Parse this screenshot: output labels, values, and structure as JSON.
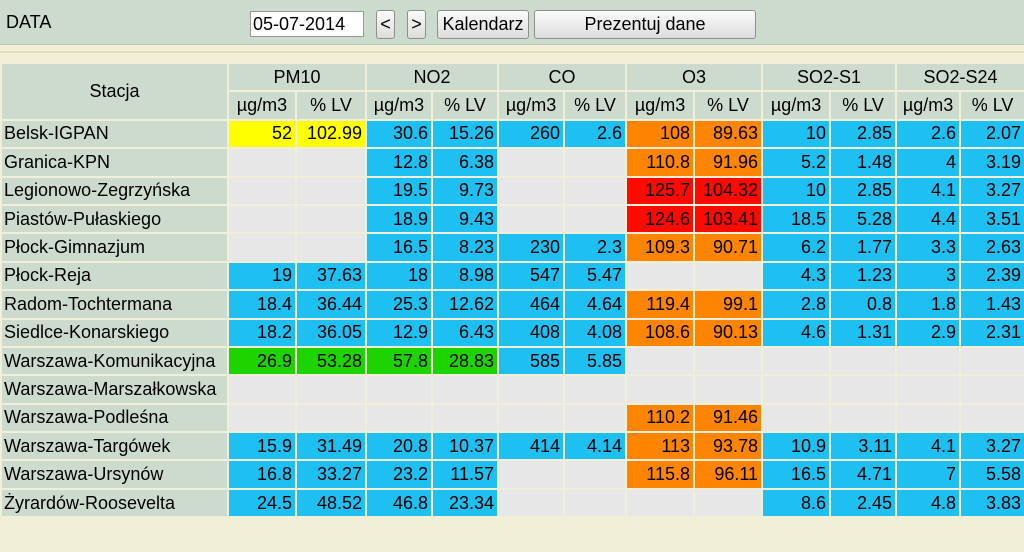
{
  "header": {
    "data_label": "DATA",
    "date_value": "05-07-2014",
    "prev_label": "<",
    "next_label": ">",
    "calendar_label": "Kalendarz",
    "present_label": "Prezentuj dane"
  },
  "colors": {
    "blue": "#1ec0f2",
    "yellow": "#ffff00",
    "orange": "#ff8400",
    "red": "#ff0a00",
    "green": "#1ed400",
    "empty": "#e7e7e7",
    "header": "#cddbcf"
  },
  "table": {
    "station_header": "Stacja",
    "pollutants": [
      "PM10",
      "NO2",
      "CO",
      "O3",
      "SO2-S1",
      "SO2-S24"
    ],
    "subheaders": [
      "µg/m3",
      "% LV"
    ],
    "rows": [
      {
        "station": "Belsk-IGPAN",
        "cells": [
          {
            "v": "52",
            "c": "yellow"
          },
          {
            "v": "102.99",
            "c": "yellow"
          },
          {
            "v": "30.6",
            "c": "blue"
          },
          {
            "v": "15.26",
            "c": "blue"
          },
          {
            "v": "260",
            "c": "blue"
          },
          {
            "v": "2.6",
            "c": "blue"
          },
          {
            "v": "108",
            "c": "orange"
          },
          {
            "v": "89.63",
            "c": "orange"
          },
          {
            "v": "10",
            "c": "blue"
          },
          {
            "v": "2.85",
            "c": "blue"
          },
          {
            "v": "2.6",
            "c": "blue"
          },
          {
            "v": "2.07",
            "c": "blue"
          }
        ]
      },
      {
        "station": "Granica-KPN",
        "cells": [
          {
            "v": "",
            "c": "empty"
          },
          {
            "v": "",
            "c": "empty"
          },
          {
            "v": "12.8",
            "c": "blue"
          },
          {
            "v": "6.38",
            "c": "blue"
          },
          {
            "v": "",
            "c": "empty"
          },
          {
            "v": "",
            "c": "empty"
          },
          {
            "v": "110.8",
            "c": "orange"
          },
          {
            "v": "91.96",
            "c": "orange"
          },
          {
            "v": "5.2",
            "c": "blue"
          },
          {
            "v": "1.48",
            "c": "blue"
          },
          {
            "v": "4",
            "c": "blue"
          },
          {
            "v": "3.19",
            "c": "blue"
          }
        ]
      },
      {
        "station": "Legionowo-Zegrzyńska",
        "cells": [
          {
            "v": "",
            "c": "empty"
          },
          {
            "v": "",
            "c": "empty"
          },
          {
            "v": "19.5",
            "c": "blue"
          },
          {
            "v": "9.73",
            "c": "blue"
          },
          {
            "v": "",
            "c": "empty"
          },
          {
            "v": "",
            "c": "empty"
          },
          {
            "v": "125.7",
            "c": "red"
          },
          {
            "v": "104.32",
            "c": "red"
          },
          {
            "v": "10",
            "c": "blue"
          },
          {
            "v": "2.85",
            "c": "blue"
          },
          {
            "v": "4.1",
            "c": "blue"
          },
          {
            "v": "3.27",
            "c": "blue"
          }
        ]
      },
      {
        "station": "Piastów-Pułaskiego",
        "cells": [
          {
            "v": "",
            "c": "empty"
          },
          {
            "v": "",
            "c": "empty"
          },
          {
            "v": "18.9",
            "c": "blue"
          },
          {
            "v": "9.43",
            "c": "blue"
          },
          {
            "v": "",
            "c": "empty"
          },
          {
            "v": "",
            "c": "empty"
          },
          {
            "v": "124.6",
            "c": "red"
          },
          {
            "v": "103.41",
            "c": "red"
          },
          {
            "v": "18.5",
            "c": "blue"
          },
          {
            "v": "5.28",
            "c": "blue"
          },
          {
            "v": "4.4",
            "c": "blue"
          },
          {
            "v": "3.51",
            "c": "blue"
          }
        ]
      },
      {
        "station": "Płock-Gimnazjum",
        "cells": [
          {
            "v": "",
            "c": "empty"
          },
          {
            "v": "",
            "c": "empty"
          },
          {
            "v": "16.5",
            "c": "blue"
          },
          {
            "v": "8.23",
            "c": "blue"
          },
          {
            "v": "230",
            "c": "blue"
          },
          {
            "v": "2.3",
            "c": "blue"
          },
          {
            "v": "109.3",
            "c": "orange"
          },
          {
            "v": "90.71",
            "c": "orange"
          },
          {
            "v": "6.2",
            "c": "blue"
          },
          {
            "v": "1.77",
            "c": "blue"
          },
          {
            "v": "3.3",
            "c": "blue"
          },
          {
            "v": "2.63",
            "c": "blue"
          }
        ]
      },
      {
        "station": "Płock-Reja",
        "cells": [
          {
            "v": "19",
            "c": "blue"
          },
          {
            "v": "37.63",
            "c": "blue"
          },
          {
            "v": "18",
            "c": "blue"
          },
          {
            "v": "8.98",
            "c": "blue"
          },
          {
            "v": "547",
            "c": "blue"
          },
          {
            "v": "5.47",
            "c": "blue"
          },
          {
            "v": "",
            "c": "empty"
          },
          {
            "v": "",
            "c": "empty"
          },
          {
            "v": "4.3",
            "c": "blue"
          },
          {
            "v": "1.23",
            "c": "blue"
          },
          {
            "v": "3",
            "c": "blue"
          },
          {
            "v": "2.39",
            "c": "blue"
          }
        ]
      },
      {
        "station": "Radom-Tochtermana",
        "cells": [
          {
            "v": "18.4",
            "c": "blue"
          },
          {
            "v": "36.44",
            "c": "blue"
          },
          {
            "v": "25.3",
            "c": "blue"
          },
          {
            "v": "12.62",
            "c": "blue"
          },
          {
            "v": "464",
            "c": "blue"
          },
          {
            "v": "4.64",
            "c": "blue"
          },
          {
            "v": "119.4",
            "c": "orange"
          },
          {
            "v": "99.1",
            "c": "orange"
          },
          {
            "v": "2.8",
            "c": "blue"
          },
          {
            "v": "0.8",
            "c": "blue"
          },
          {
            "v": "1.8",
            "c": "blue"
          },
          {
            "v": "1.43",
            "c": "blue"
          }
        ]
      },
      {
        "station": "Siedlce-Konarskiego",
        "cells": [
          {
            "v": "18.2",
            "c": "blue"
          },
          {
            "v": "36.05",
            "c": "blue"
          },
          {
            "v": "12.9",
            "c": "blue"
          },
          {
            "v": "6.43",
            "c": "blue"
          },
          {
            "v": "408",
            "c": "blue"
          },
          {
            "v": "4.08",
            "c": "blue"
          },
          {
            "v": "108.6",
            "c": "orange"
          },
          {
            "v": "90.13",
            "c": "orange"
          },
          {
            "v": "4.6",
            "c": "blue"
          },
          {
            "v": "1.31",
            "c": "blue"
          },
          {
            "v": "2.9",
            "c": "blue"
          },
          {
            "v": "2.31",
            "c": "blue"
          }
        ]
      },
      {
        "station": "Warszawa-Komunikacyjna",
        "cells": [
          {
            "v": "26.9",
            "c": "green"
          },
          {
            "v": "53.28",
            "c": "green"
          },
          {
            "v": "57.8",
            "c": "green"
          },
          {
            "v": "28.83",
            "c": "green"
          },
          {
            "v": "585",
            "c": "blue"
          },
          {
            "v": "5.85",
            "c": "blue"
          },
          {
            "v": "",
            "c": "empty"
          },
          {
            "v": "",
            "c": "empty"
          },
          {
            "v": "",
            "c": "empty"
          },
          {
            "v": "",
            "c": "empty"
          },
          {
            "v": "",
            "c": "empty"
          },
          {
            "v": "",
            "c": "empty"
          }
        ]
      },
      {
        "station": "Warszawa-Marszałkowska",
        "cells": [
          {
            "v": "",
            "c": "empty"
          },
          {
            "v": "",
            "c": "empty"
          },
          {
            "v": "",
            "c": "empty"
          },
          {
            "v": "",
            "c": "empty"
          },
          {
            "v": "",
            "c": "empty"
          },
          {
            "v": "",
            "c": "empty"
          },
          {
            "v": "",
            "c": "empty"
          },
          {
            "v": "",
            "c": "empty"
          },
          {
            "v": "",
            "c": "empty"
          },
          {
            "v": "",
            "c": "empty"
          },
          {
            "v": "",
            "c": "empty"
          },
          {
            "v": "",
            "c": "empty"
          }
        ]
      },
      {
        "station": "Warszawa-Podleśna",
        "cells": [
          {
            "v": "",
            "c": "empty"
          },
          {
            "v": "",
            "c": "empty"
          },
          {
            "v": "",
            "c": "empty"
          },
          {
            "v": "",
            "c": "empty"
          },
          {
            "v": "",
            "c": "empty"
          },
          {
            "v": "",
            "c": "empty"
          },
          {
            "v": "110.2",
            "c": "orange"
          },
          {
            "v": "91.46",
            "c": "orange"
          },
          {
            "v": "",
            "c": "empty"
          },
          {
            "v": "",
            "c": "empty"
          },
          {
            "v": "",
            "c": "empty"
          },
          {
            "v": "",
            "c": "empty"
          }
        ]
      },
      {
        "station": "Warszawa-Targówek",
        "cells": [
          {
            "v": "15.9",
            "c": "blue"
          },
          {
            "v": "31.49",
            "c": "blue"
          },
          {
            "v": "20.8",
            "c": "blue"
          },
          {
            "v": "10.37",
            "c": "blue"
          },
          {
            "v": "414",
            "c": "blue"
          },
          {
            "v": "4.14",
            "c": "blue"
          },
          {
            "v": "113",
            "c": "orange"
          },
          {
            "v": "93.78",
            "c": "orange"
          },
          {
            "v": "10.9",
            "c": "blue"
          },
          {
            "v": "3.11",
            "c": "blue"
          },
          {
            "v": "4.1",
            "c": "blue"
          },
          {
            "v": "3.27",
            "c": "blue"
          }
        ]
      },
      {
        "station": "Warszawa-Ursynów",
        "cells": [
          {
            "v": "16.8",
            "c": "blue"
          },
          {
            "v": "33.27",
            "c": "blue"
          },
          {
            "v": "23.2",
            "c": "blue"
          },
          {
            "v": "11.57",
            "c": "blue"
          },
          {
            "v": "",
            "c": "empty"
          },
          {
            "v": "",
            "c": "empty"
          },
          {
            "v": "115.8",
            "c": "orange"
          },
          {
            "v": "96.11",
            "c": "orange"
          },
          {
            "v": "16.5",
            "c": "blue"
          },
          {
            "v": "4.71",
            "c": "blue"
          },
          {
            "v": "7",
            "c": "blue"
          },
          {
            "v": "5.58",
            "c": "blue"
          }
        ]
      },
      {
        "station": "Żyrardów-Roosevelta",
        "cells": [
          {
            "v": "24.5",
            "c": "blue"
          },
          {
            "v": "48.52",
            "c": "blue"
          },
          {
            "v": "46.8",
            "c": "blue"
          },
          {
            "v": "23.34",
            "c": "blue"
          },
          {
            "v": "",
            "c": "empty"
          },
          {
            "v": "",
            "c": "empty"
          },
          {
            "v": "",
            "c": "empty"
          },
          {
            "v": "",
            "c": "empty"
          },
          {
            "v": "8.6",
            "c": "blue"
          },
          {
            "v": "2.45",
            "c": "blue"
          },
          {
            "v": "4.8",
            "c": "blue"
          },
          {
            "v": "3.83",
            "c": "blue"
          }
        ]
      }
    ]
  }
}
